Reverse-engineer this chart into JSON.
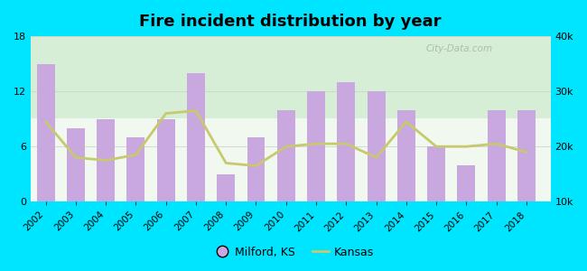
{
  "title": "Fire incident distribution by year",
  "years": [
    2002,
    2003,
    2004,
    2005,
    2006,
    2007,
    2008,
    2009,
    2010,
    2011,
    2012,
    2013,
    2014,
    2015,
    2016,
    2017,
    2018
  ],
  "milford_values": [
    15,
    8,
    9,
    7,
    9,
    14,
    3,
    7,
    10,
    12,
    13,
    12,
    10,
    6,
    4,
    10,
    10
  ],
  "kansas_values": [
    24500,
    18000,
    17500,
    18500,
    26000,
    26500,
    17000,
    16500,
    20000,
    20500,
    20500,
    18000,
    24500,
    20000,
    20000,
    20500,
    19000
  ],
  "bar_color": "#c9a8e0",
  "line_color": "#c8c86e",
  "background_top": "#d4edd4",
  "background_bottom": "#f0f8f0",
  "outer_background": "#00e5ff",
  "left_ylim": [
    0,
    18
  ],
  "left_yticks": [
    0,
    6,
    12,
    18
  ],
  "right_ylim": [
    10000,
    40000
  ],
  "right_yticks": [
    10000,
    20000,
    30000,
    40000
  ],
  "right_yticklabels": [
    "10k",
    "20k",
    "30k",
    "40k"
  ],
  "legend_milford": "Milford, KS",
  "legend_kansas": "Kansas",
  "watermark": "City-Data.com"
}
